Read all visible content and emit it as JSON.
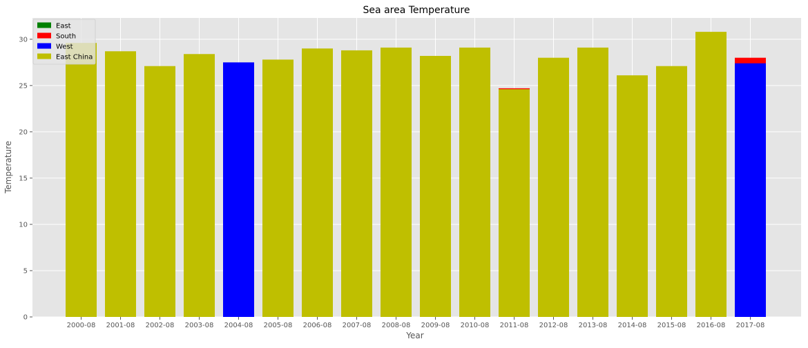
{
  "chart_data": {
    "type": "bar",
    "title": "Sea area Temperature",
    "xlabel": "Year",
    "ylabel": "Temperature",
    "ylim": [
      0,
      32.3
    ],
    "yticks": [
      0,
      5,
      10,
      15,
      20,
      25,
      30
    ],
    "grid": true,
    "legend_position": "top-left",
    "categories": [
      "2000-08",
      "2001-08",
      "2002-08",
      "2003-08",
      "2004-08",
      "2005-08",
      "2006-08",
      "2007-08",
      "2008-08",
      "2009-08",
      "2010-08",
      "2011-08",
      "2012-08",
      "2013-08",
      "2014-08",
      "2015-08",
      "2016-08",
      "2017-08"
    ],
    "series": [
      {
        "name": "East",
        "color": "#008000",
        "values": [
          0,
          0,
          0,
          0,
          0,
          0,
          0,
          0,
          0,
          0,
          0,
          0,
          0,
          0,
          0,
          0,
          0,
          0
        ]
      },
      {
        "name": "South",
        "color": "#ff0000",
        "values": [
          0,
          0,
          0,
          0,
          0,
          0,
          0,
          0,
          0,
          0,
          0,
          24.7,
          0,
          0,
          0,
          0,
          0,
          28.0
        ]
      },
      {
        "name": "West",
        "color": "#0000ff",
        "values": [
          0,
          0,
          0,
          0,
          27.5,
          0,
          0,
          0,
          0,
          0,
          0,
          0,
          0,
          0,
          0,
          0,
          0,
          27.4
        ]
      },
      {
        "name": "East China",
        "color": "#bfbf00",
        "values": [
          29.6,
          28.7,
          27.1,
          28.4,
          0,
          27.8,
          29.0,
          28.8,
          29.1,
          28.2,
          29.1,
          24.6,
          28.0,
          29.1,
          26.1,
          27.1,
          30.8,
          0
        ]
      }
    ]
  }
}
